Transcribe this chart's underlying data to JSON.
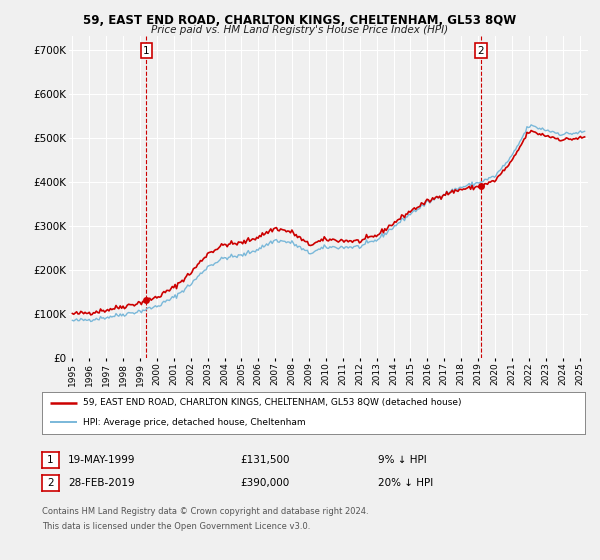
{
  "title": "59, EAST END ROAD, CHARLTON KINGS, CHELTENHAM, GL53 8QW",
  "subtitle": "Price paid vs. HM Land Registry's House Price Index (HPI)",
  "legend_line1": "59, EAST END ROAD, CHARLTON KINGS, CHELTENHAM, GL53 8QW (detached house)",
  "legend_line2": "HPI: Average price, detached house, Cheltenham",
  "annotation1_label": "1",
  "annotation1_date": "19-MAY-1999",
  "annotation1_price": 131500,
  "annotation1_note": "9% ↓ HPI",
  "annotation2_label": "2",
  "annotation2_date": "28-FEB-2019",
  "annotation2_price": 390000,
  "annotation2_note": "20% ↓ HPI",
  "footnote1": "Contains HM Land Registry data © Crown copyright and database right 2024.",
  "footnote2": "This data is licensed under the Open Government Licence v3.0.",
  "hpi_color": "#7ab8d9",
  "property_color": "#cc0000",
  "annotation_color": "#cc0000",
  "background_color": "#f0f0f0",
  "grid_color": "#ffffff",
  "ylim": [
    0,
    730000
  ],
  "yticks": [
    0,
    100000,
    200000,
    300000,
    400000,
    500000,
    600000,
    700000
  ],
  "xlim_start": 1994.8,
  "xlim_end": 2025.5,
  "sale1_x": 1999.38,
  "sale1_y": 131500,
  "sale2_x": 2019.17,
  "sale2_y": 390000
}
